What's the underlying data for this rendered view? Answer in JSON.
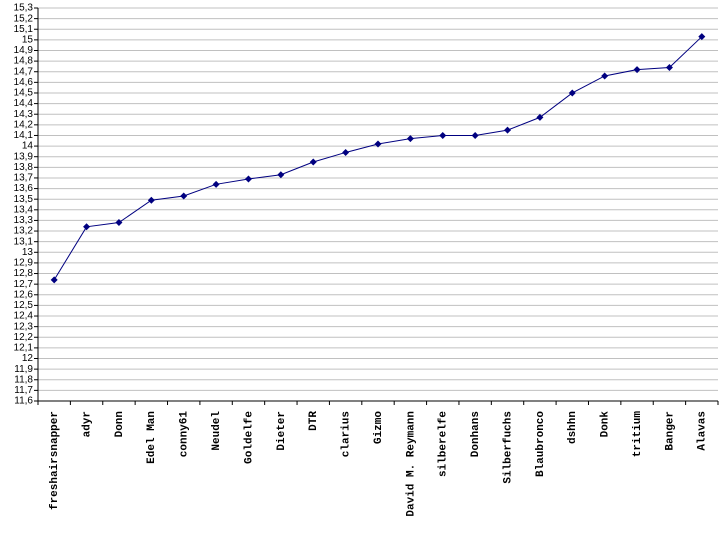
{
  "chart_data": {
    "type": "line",
    "color": "#000080",
    "grid": true,
    "categories": [
      "freshairsnapper",
      "adyr",
      "Donn",
      "Edel Man",
      "conny61",
      "Neudel",
      "Goldelfe",
      "Dieter",
      "DTR",
      "clarius",
      "Gizmo",
      "David M. Reymann",
      "silberelfe",
      "Donhans",
      "Silberfuchs",
      "Blaubronco",
      "dshhn",
      "Donk",
      "tritium",
      "Banger",
      "Alavas"
    ],
    "values": [
      12.74,
      13.24,
      13.28,
      13.49,
      13.53,
      13.64,
      13.69,
      13.73,
      13.85,
      13.94,
      14.02,
      14.07,
      14.1,
      14.1,
      14.15,
      14.27,
      14.5,
      14.66,
      14.72,
      14.74,
      15.03
    ],
    "ylim": [
      11.6,
      15.3
    ],
    "yticks": [
      {
        "value": 11.6,
        "label": "11,6"
      },
      {
        "value": 11.7,
        "label": "11,7"
      },
      {
        "value": 11.8,
        "label": "11,8"
      },
      {
        "value": 11.9,
        "label": "11,9"
      },
      12,
      {
        "value": 12.1,
        "label": "12,1"
      },
      {
        "value": 12.2,
        "label": "12,2"
      },
      {
        "value": 12.3,
        "label": "12,3"
      },
      {
        "value": 12.4,
        "label": "12,4"
      },
      {
        "value": 12.5,
        "label": "12,5"
      },
      {
        "value": 12.6,
        "label": "12,6"
      },
      {
        "value": 12.7,
        "label": "12,7"
      },
      {
        "value": 12.8,
        "label": "12,8"
      },
      {
        "value": 12.9,
        "label": "12,9"
      },
      13,
      {
        "value": 13.1,
        "label": "13,1"
      },
      {
        "value": 13.2,
        "label": "13,2"
      },
      {
        "value": 13.3,
        "label": "13,3"
      },
      {
        "value": 13.4,
        "label": "13,4"
      },
      {
        "value": 13.5,
        "label": "13,5"
      },
      {
        "value": 13.6,
        "label": "13,6"
      },
      {
        "value": 13.7,
        "label": "13,7"
      },
      {
        "value": 13.8,
        "label": "13,8"
      },
      {
        "value": 13.9,
        "label": "13,9"
      },
      14,
      {
        "value": 14.1,
        "label": "14,1"
      },
      {
        "value": 14.2,
        "label": "14,2"
      },
      {
        "value": 14.3,
        "label": "14,3"
      },
      {
        "value": 14.4,
        "label": "14,4"
      },
      {
        "value": 14.5,
        "label": "14,5"
      },
      {
        "value": 14.6,
        "label": "14,6"
      },
      {
        "value": 14.7,
        "label": "14,7"
      },
      {
        "value": 14.8,
        "label": "14,8"
      },
      {
        "value": 14.9,
        "label": "14,9"
      },
      15,
      {
        "value": 15.1,
        "label": "15,1"
      },
      {
        "value": 15.2,
        "label": "15,2"
      },
      {
        "value": 15.3,
        "label": "15,3"
      }
    ]
  }
}
